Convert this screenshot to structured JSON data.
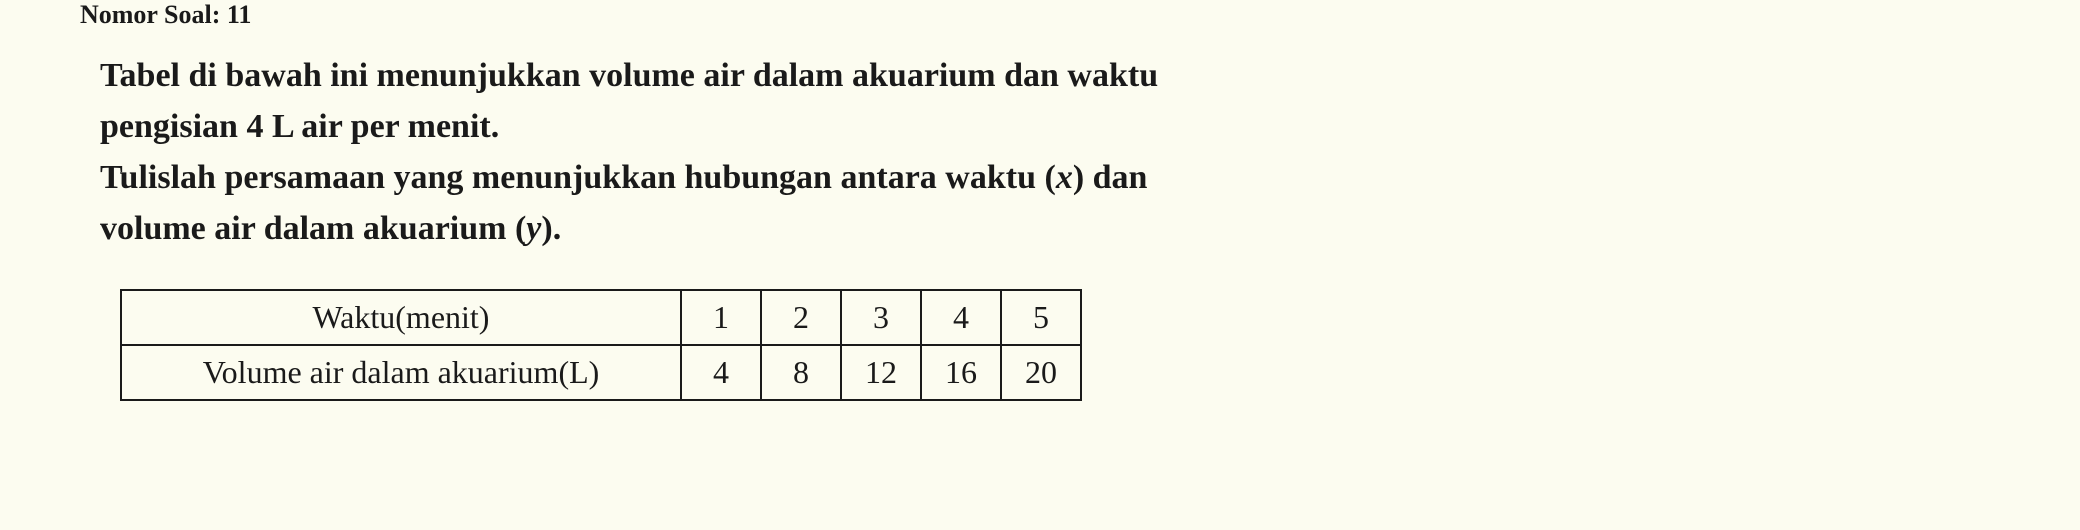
{
  "header_partial": "Nomor Soal: 11",
  "paragraph": {
    "line1": "Tabel di bawah ini menunjukkan volume air dalam akuarium dan waktu",
    "line2": "pengisian 4 L air per menit.",
    "line3_pre": "Tulislah persamaan yang menunjukkan hubungan antara waktu (",
    "line3_var1": "x",
    "line3_mid": ") dan",
    "line4_pre": "volume air dalam akuarium (",
    "line4_var": "y",
    "line4_post": ")."
  },
  "table": {
    "row1_label": "Waktu(menit)",
    "row2_label": "Volume air dalam akuarium(L)",
    "row1_data": [
      "1",
      "2",
      "3",
      "4",
      "5"
    ],
    "row2_data": [
      "4",
      "8",
      "12",
      "16",
      "20"
    ]
  },
  "styles": {
    "background_color": "#fcfcf0",
    "text_color": "#1a1a1a",
    "border_color": "#1a1a1a",
    "question_fontsize": 34,
    "table_fontsize": 32
  }
}
